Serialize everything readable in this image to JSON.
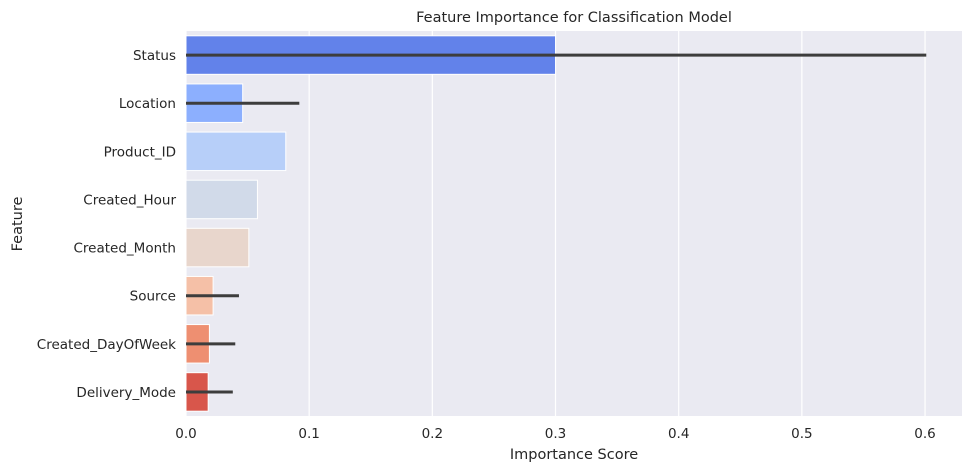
{
  "chart_data": {
    "type": "bar",
    "orientation": "horizontal",
    "title": "Feature Importance for Classification Model",
    "xlabel": "Importance Score",
    "ylabel": "Feature",
    "xlim": [
      0,
      0.63
    ],
    "x_ticks": [
      0.0,
      0.1,
      0.2,
      0.3,
      0.4,
      0.5,
      0.6
    ],
    "x_tick_labels": [
      "0.0",
      "0.1",
      "0.2",
      "0.3",
      "0.4",
      "0.5",
      "0.6"
    ],
    "grid": true,
    "background_color": "#eaeaf2",
    "grid_color": "#ffffff",
    "errorbar_color": "#3d3d3d",
    "categories": [
      "Status",
      "Location",
      "Product_ID",
      "Created_Hour",
      "Created_Month",
      "Source",
      "Created_DayOfWeek",
      "Delivery_Mode"
    ],
    "values": [
      0.3,
      0.046,
      0.081,
      0.058,
      0.051,
      0.022,
      0.019,
      0.018
    ],
    "error_upper": [
      0.601,
      0.092,
      null,
      null,
      null,
      0.043,
      0.04,
      0.038
    ],
    "error_lower": [
      0.0,
      0.0,
      null,
      null,
      null,
      0.0,
      0.0,
      0.0
    ],
    "colors": [
      "#6282ea",
      "#8caffe",
      "#b7cff9",
      "#d1dae9",
      "#e8d6cc",
      "#f5c0a7",
      "#ee8f71",
      "#d8564b"
    ]
  }
}
